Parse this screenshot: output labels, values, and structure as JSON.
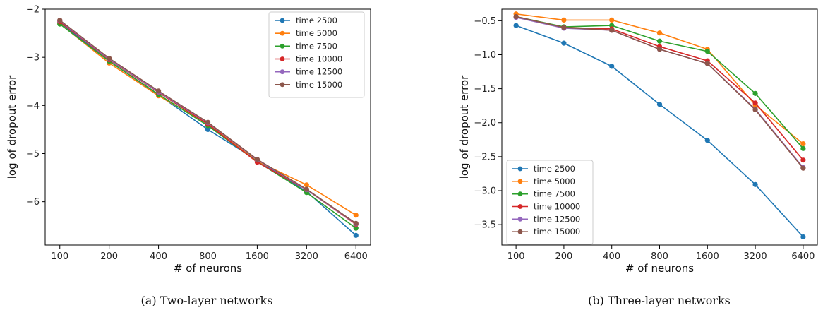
{
  "chart_data": [
    {
      "type": "line",
      "caption": "(a) Two-layer networks",
      "xlabel": "# of neurons",
      "ylabel": "log of dropout error",
      "categories": [
        "100",
        "200",
        "400",
        "800",
        "1600",
        "3200",
        "6400"
      ],
      "ylim": [
        -6.9,
        -2.0
      ],
      "yticks": [
        -2,
        -3,
        -4,
        -5,
        -6
      ],
      "ytick_labels": [
        "−2",
        "−3",
        "−4",
        "−5",
        "−6"
      ],
      "legend": "top-right",
      "grid": false,
      "series": [
        {
          "name": "time 2500",
          "color": "#1f77b4",
          "values": [
            -2.28,
            -3.08,
            -3.78,
            -4.5,
            -5.14,
            -5.79,
            -6.7
          ]
        },
        {
          "name": "time 5000",
          "color": "#ff7f0e",
          "values": [
            -2.3,
            -3.12,
            -3.8,
            -4.38,
            -5.16,
            -5.65,
            -6.28
          ]
        },
        {
          "name": "time 7500",
          "color": "#2ca02c",
          "values": [
            -2.31,
            -3.08,
            -3.77,
            -4.42,
            -5.17,
            -5.81,
            -6.55
          ]
        },
        {
          "name": "time 10000",
          "color": "#d62728",
          "values": [
            -2.26,
            -3.05,
            -3.73,
            -4.39,
            -5.18,
            -5.75,
            -6.47
          ]
        },
        {
          "name": "time 12500",
          "color": "#9467bd",
          "values": [
            -2.24,
            -3.04,
            -3.72,
            -4.36,
            -5.13,
            -5.75,
            -6.46
          ]
        },
        {
          "name": "time 15000",
          "color": "#8c564b",
          "values": [
            -2.23,
            -3.02,
            -3.7,
            -4.35,
            -5.12,
            -5.74,
            -6.45
          ]
        }
      ]
    },
    {
      "type": "line",
      "caption": "(b) Three-layer networks",
      "xlabel": "# of neurons",
      "ylabel": "log of dropout error",
      "categories": [
        "100",
        "200",
        "400",
        "800",
        "1600",
        "3200",
        "6400"
      ],
      "ylim": [
        -3.8,
        -0.33
      ],
      "yticks": [
        -0.5,
        -1.0,
        -1.5,
        -2.0,
        -2.5,
        -3.0,
        -3.5
      ],
      "ytick_labels": [
        "−0.5",
        "−1.0",
        "−1.5",
        "−2.0",
        "−2.5",
        "−3.0",
        "−3.5"
      ],
      "legend": "lower-left",
      "grid": false,
      "series": [
        {
          "name": "time 2500",
          "color": "#1f77b4",
          "values": [
            -0.57,
            -0.83,
            -1.17,
            -1.73,
            -2.26,
            -2.91,
            -3.68
          ]
        },
        {
          "name": "time 5000",
          "color": "#ff7f0e",
          "values": [
            -0.4,
            -0.49,
            -0.49,
            -0.68,
            -0.92,
            -1.74,
            -2.31
          ]
        },
        {
          "name": "time 7500",
          "color": "#2ca02c",
          "values": [
            -0.44,
            -0.59,
            -0.57,
            -0.8,
            -0.95,
            -1.57,
            -2.38
          ]
        },
        {
          "name": "time 10000",
          "color": "#d62728",
          "values": [
            -0.44,
            -0.6,
            -0.62,
            -0.88,
            -1.09,
            -1.71,
            -2.55
          ]
        },
        {
          "name": "time 12500",
          "color": "#9467bd",
          "values": [
            -0.45,
            -0.61,
            -0.64,
            -0.92,
            -1.13,
            -1.8,
            -2.66
          ]
        },
        {
          "name": "time 15000",
          "color": "#8c564b",
          "values": [
            -0.44,
            -0.6,
            -0.64,
            -0.92,
            -1.13,
            -1.81,
            -2.67
          ]
        }
      ]
    }
  ]
}
